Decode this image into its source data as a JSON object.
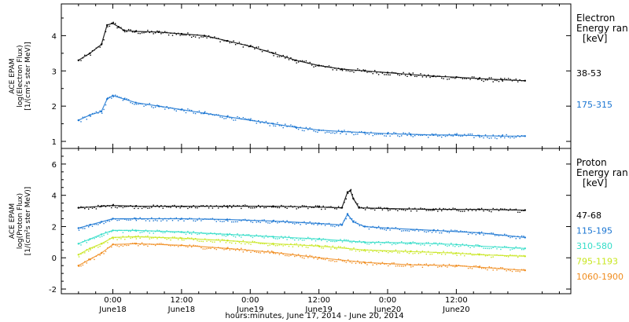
{
  "chart_data": [
    {
      "type": "scatter",
      "instrument": "ACE EPAM",
      "ylabel_lines": [
        "ACE EPAM",
        "log(Electron Flux)",
        "[1/(cm²s ster MeV)]"
      ],
      "ylim": [
        0.8,
        4.9
      ],
      "yticks": [
        1,
        2,
        3,
        4
      ],
      "legend_title": [
        "Electron",
        "Energy ran"
      ],
      "legend_unit": "[keV]",
      "series": [
        {
          "name": "38-53",
          "color": "#000000",
          "points": [
            [
              -6,
              3.3
            ],
            [
              -4,
              3.5
            ],
            [
              -2,
              3.75
            ],
            [
              -1,
              4.3
            ],
            [
              0,
              4.35
            ],
            [
              1,
              4.25
            ],
            [
              2,
              4.15
            ],
            [
              4,
              4.12
            ],
            [
              8,
              4.1
            ],
            [
              12,
              4.05
            ],
            [
              16,
              4.0
            ],
            [
              20,
              3.85
            ],
            [
              24,
              3.7
            ],
            [
              28,
              3.5
            ],
            [
              32,
              3.3
            ],
            [
              36,
              3.15
            ],
            [
              40,
              3.05
            ],
            [
              44,
              3.0
            ],
            [
              48,
              2.95
            ],
            [
              52,
              2.9
            ],
            [
              56,
              2.85
            ],
            [
              60,
              2.82
            ],
            [
              64,
              2.78
            ],
            [
              68,
              2.75
            ],
            [
              72,
              2.72
            ]
          ]
        },
        {
          "name": "175-315",
          "color": "#1a75d2",
          "points": [
            [
              -6,
              1.6
            ],
            [
              -4,
              1.75
            ],
            [
              -2,
              1.85
            ],
            [
              -1,
              2.2
            ],
            [
              0,
              2.3
            ],
            [
              2,
              2.2
            ],
            [
              4,
              2.1
            ],
            [
              8,
              2.0
            ],
            [
              12,
              1.9
            ],
            [
              16,
              1.8
            ],
            [
              20,
              1.7
            ],
            [
              24,
              1.6
            ],
            [
              28,
              1.5
            ],
            [
              32,
              1.4
            ],
            [
              36,
              1.32
            ],
            [
              40,
              1.28
            ],
            [
              44,
              1.25
            ],
            [
              48,
              1.22
            ],
            [
              52,
              1.2
            ],
            [
              56,
              1.18
            ],
            [
              60,
              1.18
            ],
            [
              64,
              1.16
            ],
            [
              68,
              1.15
            ],
            [
              72,
              1.15
            ]
          ]
        }
      ]
    },
    {
      "type": "scatter",
      "instrument": "ACE EPAM",
      "ylabel_lines": [
        "ACE EPAM",
        "log(Proton Flux)",
        "[1/(cm²s ster MeV)]"
      ],
      "ylim": [
        -2.3,
        7.0
      ],
      "yticks": [
        -2,
        0,
        2,
        4,
        6
      ],
      "legend_title": [
        "Proton",
        "Energy ran"
      ],
      "legend_unit": "[keV]",
      "series": [
        {
          "name": "47-68",
          "color": "#000000",
          "points": [
            [
              -6,
              3.2
            ],
            [
              -2,
              3.3
            ],
            [
              0,
              3.35
            ],
            [
              4,
              3.3
            ],
            [
              12,
              3.3
            ],
            [
              20,
              3.3
            ],
            [
              28,
              3.3
            ],
            [
              36,
              3.25
            ],
            [
              40,
              3.2
            ],
            [
              41,
              4.2
            ],
            [
              41.5,
              4.3
            ],
            [
              42,
              3.8
            ],
            [
              43,
              3.2
            ],
            [
              48,
              3.15
            ],
            [
              56,
              3.1
            ],
            [
              64,
              3.1
            ],
            [
              72,
              3.05
            ]
          ]
        },
        {
          "name": "115-195",
          "color": "#1a75d2",
          "points": [
            [
              -6,
              1.9
            ],
            [
              -4,
              2.1
            ],
            [
              -2,
              2.3
            ],
            [
              0,
              2.5
            ],
            [
              4,
              2.5
            ],
            [
              12,
              2.5
            ],
            [
              20,
              2.45
            ],
            [
              28,
              2.35
            ],
            [
              36,
              2.2
            ],
            [
              40,
              2.1
            ],
            [
              41,
              2.8
            ],
            [
              42,
              2.3
            ],
            [
              44,
              2.0
            ],
            [
              48,
              1.9
            ],
            [
              56,
              1.75
            ],
            [
              64,
              1.6
            ],
            [
              72,
              1.3
            ]
          ]
        },
        {
          "name": "310-580",
          "color": "#33ddc8",
          "points": [
            [
              -6,
              0.9
            ],
            [
              -4,
              1.2
            ],
            [
              -2,
              1.5
            ],
            [
              0,
              1.75
            ],
            [
              4,
              1.75
            ],
            [
              12,
              1.65
            ],
            [
              20,
              1.5
            ],
            [
              28,
              1.35
            ],
            [
              36,
              1.2
            ],
            [
              44,
              1.0
            ],
            [
              52,
              0.95
            ],
            [
              60,
              0.85
            ],
            [
              64,
              0.75
            ],
            [
              72,
              0.6
            ]
          ]
        },
        {
          "name": "795-1193",
          "color": "#c8e61e",
          "points": [
            [
              -6,
              0.2
            ],
            [
              -4,
              0.6
            ],
            [
              -2,
              0.9
            ],
            [
              0,
              1.3
            ],
            [
              4,
              1.35
            ],
            [
              12,
              1.25
            ],
            [
              20,
              1.1
            ],
            [
              28,
              0.9
            ],
            [
              36,
              0.75
            ],
            [
              44,
              0.5
            ],
            [
              52,
              0.4
            ],
            [
              60,
              0.3
            ],
            [
              64,
              0.2
            ],
            [
              72,
              0.1
            ]
          ]
        },
        {
          "name": "1060-1900",
          "color": "#f08c1e",
          "points": [
            [
              -6,
              -0.5
            ],
            [
              -4,
              -0.1
            ],
            [
              -2,
              0.3
            ],
            [
              0,
              0.85
            ],
            [
              4,
              0.9
            ],
            [
              12,
              0.8
            ],
            [
              20,
              0.6
            ],
            [
              28,
              0.35
            ],
            [
              36,
              0.0
            ],
            [
              44,
              -0.3
            ],
            [
              52,
              -0.45
            ],
            [
              60,
              -0.5
            ],
            [
              64,
              -0.6
            ],
            [
              72,
              -0.8
            ]
          ]
        }
      ]
    }
  ],
  "x_axis": {
    "xlim": [
      -9,
      80
    ],
    "ticks": [
      {
        "x": 0,
        "time": "0:00",
        "day": "June18"
      },
      {
        "x": 12,
        "time": "12:00",
        "day": "June18"
      },
      {
        "x": 24,
        "time": "0:00",
        "day": "June19"
      },
      {
        "x": 36,
        "time": "12:00",
        "day": "June19"
      },
      {
        "x": 48,
        "time": "0:00",
        "day": "June20"
      },
      {
        "x": 60,
        "time": "12:00",
        "day": "June20"
      }
    ],
    "label": "hours:minutes, June 17, 2014 - June 20, 2014"
  }
}
